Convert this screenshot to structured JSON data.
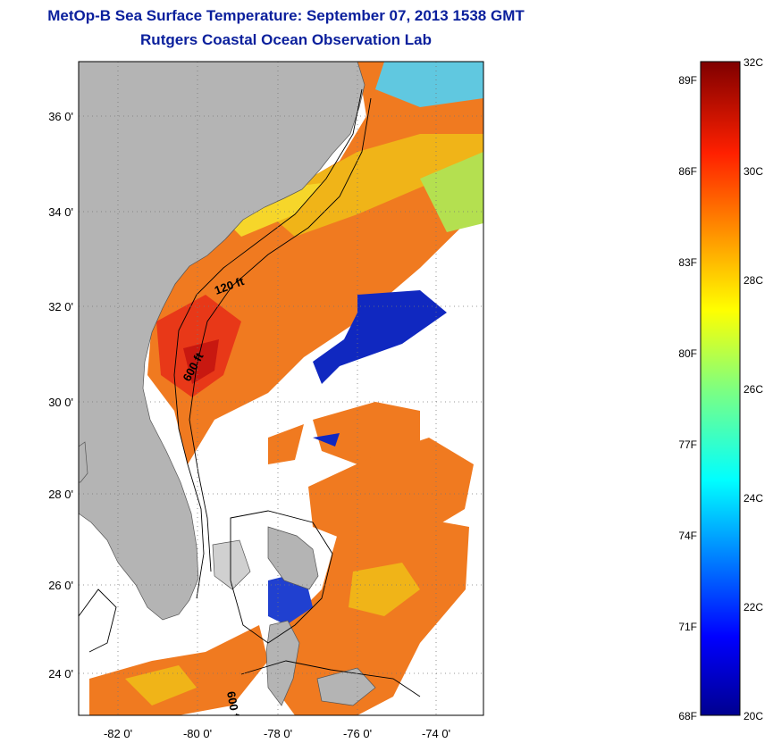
{
  "title": {
    "line1": "MetOp-B Sea Surface Temperature:  September 07, 2013 1538 GMT",
    "line2": "Rutgers Coastal Ocean Observation Lab"
  },
  "map": {
    "lat_ticks": [
      "36 0'",
      "34 0'",
      "32 0'",
      "30 0'",
      "28 0'",
      "26 0'",
      "24 0'"
    ],
    "lon_ticks": [
      "-82 0'",
      "-80 0'",
      "-78 0'",
      "-76 0'",
      "-74 0'"
    ],
    "contour_labels": [
      "120 ft",
      "600 ft",
      "600 ft"
    ],
    "colors": {
      "land": "#b4b4b4",
      "no_data": "#ffffff",
      "warm": "#f07020",
      "cold": "#1020b0"
    }
  },
  "colorbar": {
    "range_c": [
      20,
      32
    ],
    "celsius_labels": [
      "32C",
      "30C",
      "28C",
      "26C",
      "24C",
      "22C",
      "20C"
    ],
    "fahrenheit_labels": [
      "89F",
      "86F",
      "83F",
      "80F",
      "77F",
      "74F",
      "71F",
      "68F"
    ]
  }
}
